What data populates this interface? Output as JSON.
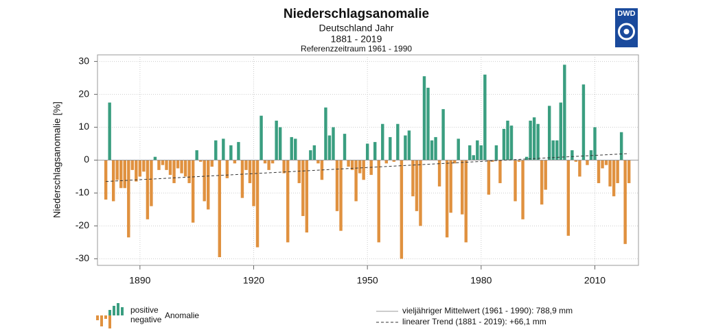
{
  "chart_data": {
    "type": "bar",
    "title": "Niederschlagsanomalie",
    "subtitle": "Deutschland Jahr",
    "period": "1881 - 2019",
    "reference": "Referenzzeitraum 1961 - 1990",
    "logo": "DWD",
    "ylabel": "Niederschlagsanomalie [%]",
    "x": [
      1881,
      1882,
      1883,
      1884,
      1885,
      1886,
      1887,
      1888,
      1889,
      1890,
      1891,
      1892,
      1893,
      1894,
      1895,
      1896,
      1897,
      1898,
      1899,
      1900,
      1901,
      1902,
      1903,
      1904,
      1905,
      1906,
      1907,
      1908,
      1909,
      1910,
      1911,
      1912,
      1913,
      1914,
      1915,
      1916,
      1917,
      1918,
      1919,
      1920,
      1921,
      1922,
      1923,
      1924,
      1925,
      1926,
      1927,
      1928,
      1929,
      1930,
      1931,
      1932,
      1933,
      1934,
      1935,
      1936,
      1937,
      1938,
      1939,
      1940,
      1941,
      1942,
      1943,
      1944,
      1945,
      1946,
      1947,
      1948,
      1949,
      1950,
      1951,
      1952,
      1953,
      1954,
      1955,
      1956,
      1957,
      1958,
      1959,
      1960,
      1961,
      1962,
      1963,
      1964,
      1965,
      1966,
      1967,
      1968,
      1969,
      1970,
      1971,
      1972,
      1973,
      1974,
      1975,
      1976,
      1977,
      1978,
      1979,
      1980,
      1981,
      1982,
      1983,
      1984,
      1985,
      1986,
      1987,
      1988,
      1989,
      1990,
      1991,
      1992,
      1993,
      1994,
      1995,
      1996,
      1997,
      1998,
      1999,
      2000,
      2001,
      2002,
      2003,
      2004,
      2005,
      2006,
      2007,
      2008,
      2009,
      2010,
      2011,
      2012,
      2013,
      2014,
      2015,
      2016,
      2017,
      2018,
      2019
    ],
    "values": [
      -12,
      17.5,
      -12.5,
      -6,
      -8.5,
      -8.5,
      -23.5,
      -3,
      -6.5,
      -5,
      -3.5,
      -18,
      -14,
      1,
      -3,
      -1.5,
      -3,
      -4.5,
      -7,
      -2.5,
      -4,
      -5,
      -7,
      -19,
      3,
      -0.5,
      -12.5,
      -15,
      -2,
      6,
      -29.5,
      6.5,
      -5.5,
      4.5,
      -1,
      5.5,
      -11.5,
      -3,
      -7,
      -14,
      -26.5,
      13.5,
      -1,
      -3,
      -1,
      12,
      10,
      -4,
      -25,
      7,
      6.5,
      -7,
      -17,
      -22,
      3,
      4.5,
      -1,
      -6,
      16,
      7.5,
      10,
      -15.5,
      -21.5,
      8,
      -2,
      -3,
      -12.5,
      -4,
      -6,
      5,
      -4.5,
      5.5,
      -25,
      11,
      -1,
      7,
      -0.5,
      11,
      -30,
      7.5,
      9,
      -11,
      -15.5,
      -20,
      25.5,
      22,
      6,
      7,
      -8,
      15.5,
      -23.5,
      -16,
      -1,
      6.5,
      -16.5,
      -25,
      4.5,
      1.5,
      6,
      4.5,
      26,
      -10.5,
      -0.5,
      4.5,
      -7,
      9.5,
      12,
      10.5,
      -12.5,
      -0.5,
      -18,
      1,
      12,
      13,
      11,
      -13.5,
      -9,
      16.5,
      6,
      6,
      17.5,
      29,
      -23,
      3,
      -0.5,
      -5,
      23,
      -1.5,
      3,
      10,
      -7,
      -2.5,
      -1.5,
      -8,
      -11,
      -7,
      8.5,
      -25.5,
      -7
    ],
    "positive_color": "#3a9e80",
    "negative_color": "#e0913f",
    "trend": {
      "x": [
        1881,
        2019
      ],
      "values": [
        -6.5,
        2
      ]
    },
    "xlim": [
      1878.8,
      2021.5
    ],
    "xticks": [
      1890,
      1920,
      1950,
      1980,
      2010
    ],
    "ylim": [
      -32,
      32
    ],
    "yticks": [
      30,
      20,
      10,
      0,
      -10,
      -20,
      -30
    ],
    "grid": true,
    "legend": {
      "positive": "positive",
      "negative": "negative",
      "anomaly": "Anomalie",
      "mean": "vieljähriger Mittelwert (1961 - 1990): 788,9 mm",
      "trend": "linearer Trend (1881 - 2019): +66,1 mm"
    }
  }
}
